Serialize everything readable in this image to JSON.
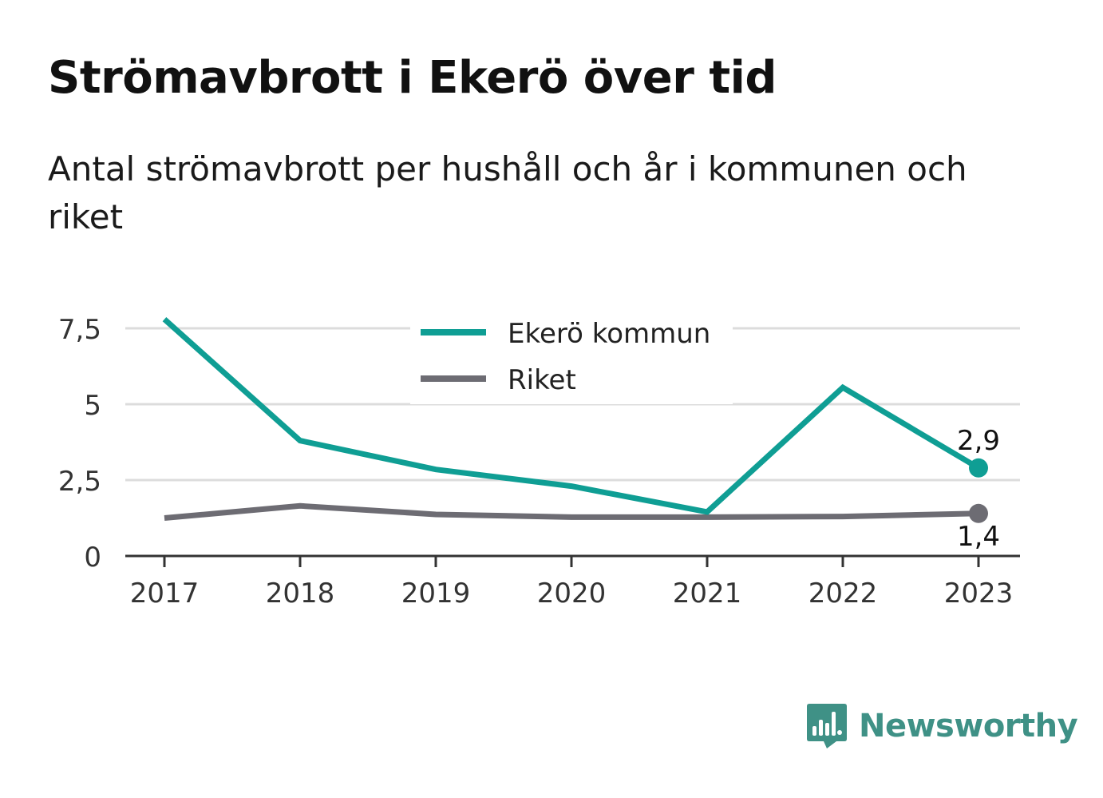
{
  "title": "Strömavbrott i Ekerö över tid",
  "subtitle": "Antal strömavbrott per hushåll och år i kommunen och riket",
  "brand": {
    "name": "Newsworthy",
    "icon": "newsworthy-logo-icon",
    "color": "#3f9186"
  },
  "chart_data": {
    "type": "line",
    "x": [
      "2017",
      "2018",
      "2019",
      "2020",
      "2021",
      "2022",
      "2023"
    ],
    "series": [
      {
        "name": "Ekerö kommun",
        "color": "#0f9e94",
        "values": [
          7.8,
          3.8,
          2.85,
          2.3,
          1.45,
          5.55,
          2.9
        ],
        "end_label": "2,9"
      },
      {
        "name": "Riket",
        "color": "#6d6c73",
        "values": [
          1.25,
          1.65,
          1.37,
          1.28,
          1.28,
          1.3,
          1.4
        ],
        "end_label": "1,4"
      }
    ],
    "yticks": [
      {
        "value": 0,
        "label": "0"
      },
      {
        "value": 2.5,
        "label": "2,5"
      },
      {
        "value": 5,
        "label": "5"
      },
      {
        "value": 7.5,
        "label": "7,5"
      }
    ],
    "ylim": [
      0,
      7.5
    ],
    "grid": true,
    "legend_position": "top-center"
  }
}
